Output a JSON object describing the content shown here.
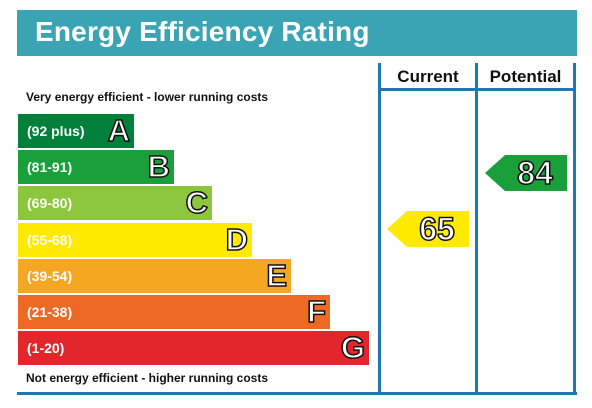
{
  "title": "Energy Efficiency Rating",
  "columns": {
    "current": "Current",
    "potential": "Potential"
  },
  "top_note": "Very energy efficient - lower running costs",
  "bottom_note": "Not energy efficient - higher running costs",
  "bands": [
    {
      "letter": "A",
      "range": "(92 plus)",
      "color": "#00803a"
    },
    {
      "letter": "B",
      "range": "(81-91)",
      "color": "#1aa03a"
    },
    {
      "letter": "C",
      "range": "(69-80)",
      "color": "#8cc63f"
    },
    {
      "letter": "D",
      "range": "(55-68)",
      "color": "#ffea00"
    },
    {
      "letter": "E",
      "range": "(39-54)",
      "color": "#f5a623"
    },
    {
      "letter": "F",
      "range": "(21-38)",
      "color": "#ee6a24"
    },
    {
      "letter": "G",
      "range": "(1-20)",
      "color": "#e3262b"
    }
  ],
  "current_rating": {
    "value": "65",
    "band": "D",
    "color": "#ffea00"
  },
  "potential_rating": {
    "value": "84",
    "band": "B",
    "color": "#1aa03a"
  },
  "colors": {
    "title_bar": "#3aa4b4",
    "frame": "#1f78b4"
  }
}
